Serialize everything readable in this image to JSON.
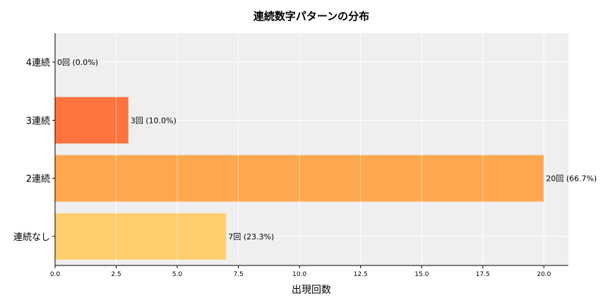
{
  "chart_data": {
    "type": "bar",
    "orientation": "horizontal",
    "title": "連続数字パターンの分布",
    "xlabel": "出現回数",
    "ylabel": "",
    "categories": [
      "連続なし",
      "2連続",
      "3連続",
      "4連続"
    ],
    "values": [
      7,
      20,
      3,
      0
    ],
    "data_labels": [
      "7回 (23.3%)",
      "20回 (66.7%)",
      "3回 (10.0%)",
      "0回 (0.0%)"
    ],
    "colors": [
      "#FFCC66",
      "#FFA245",
      "#FF6B35",
      "#E84A1F"
    ],
    "x_ticks": [
      "0.0",
      "2.5",
      "5.0",
      "7.5",
      "10.0",
      "12.5",
      "15.0",
      "17.5",
      "20.0"
    ],
    "xlim": [
      0,
      21
    ],
    "grid": true,
    "background": "#EFEFEF",
    "legend": "none"
  }
}
